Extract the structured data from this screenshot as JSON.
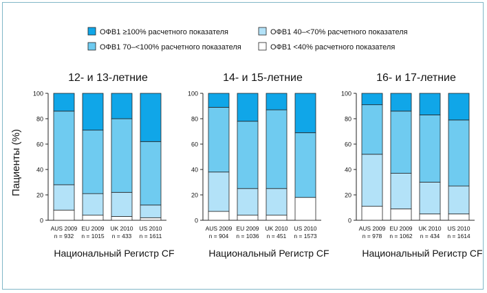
{
  "colors": {
    "ge100": "#10a6e8",
    "c70_100": "#6fcbf0",
    "c40_70": "#b3e2f8",
    "lt40": "#ffffff",
    "frame": "#7fb6c6"
  },
  "legend": [
    {
      "key": "ge100",
      "label": "ОФВ1 ≥100% расчетного показателя"
    },
    {
      "key": "c70_100",
      "label": "ОФВ1 70–<100% расчетного показателя"
    },
    {
      "key": "c40_70",
      "label": "ОФВ1 40–<70% расчетного показателя"
    },
    {
      "key": "lt40",
      "label": "ОФВ1 <40% расчетного показателя"
    }
  ],
  "chart_data": [
    {
      "type": "bar",
      "stacked": true,
      "title": "12- и 13-летние",
      "xlabel": "Национальный Регистр CF",
      "ylabel": "Пациенты (%)",
      "ylim": [
        0,
        100
      ],
      "yticks": [
        0,
        20,
        40,
        60,
        80,
        100
      ],
      "categories": [
        {
          "name": "AUS 2009",
          "n": "n = 932"
        },
        {
          "name": "EU 2009",
          "n": "n = 1015"
        },
        {
          "name": "UK 2010",
          "n": "n = 433"
        },
        {
          "name": "US 2010",
          "n": "n = 1611"
        }
      ],
      "series": [
        {
          "name": "ОФВ1 <40% расчетного показателя",
          "key": "lt40",
          "values": [
            8,
            4,
            3,
            2
          ]
        },
        {
          "name": "ОФВ1 40–<70% расчетного показателя",
          "key": "c40_70",
          "values": [
            20,
            17,
            19,
            10
          ]
        },
        {
          "name": "ОФВ1 70–<100% расчетного показателя",
          "key": "c70_100",
          "values": [
            58,
            50,
            58,
            50
          ]
        },
        {
          "name": "ОФВ1 ≥100% расчетного показателя",
          "key": "ge100",
          "values": [
            14,
            29,
            20,
            38
          ]
        }
      ]
    },
    {
      "type": "bar",
      "stacked": true,
      "title": "14- и 15-летние",
      "xlabel": "Национальный Регистр CF",
      "ylim": [
        0,
        100
      ],
      "yticks": [
        0,
        20,
        40,
        60,
        80,
        100
      ],
      "categories": [
        {
          "name": "AUS 2009",
          "n": "n = 904"
        },
        {
          "name": "EU 2009",
          "n": "n = 1036"
        },
        {
          "name": "UK 2010",
          "n": "n = 451"
        },
        {
          "name": "US 2010",
          "n": "n = 1573"
        }
      ],
      "series": [
        {
          "name": "ОФВ1 <40% расчетного показателя",
          "key": "lt40",
          "values": [
            7,
            4,
            4,
            18
          ]
        },
        {
          "name": "ОФВ1 40–<70% расчетного показателя",
          "key": "c40_70",
          "values": [
            31,
            21,
            21,
            0
          ]
        },
        {
          "name": "ОФВ1 70–<100% расчетного показателя",
          "key": "c70_100",
          "values": [
            51,
            53,
            62,
            51
          ]
        },
        {
          "name": "ОФВ1 ≥100% расчетного показателя",
          "key": "ge100",
          "values": [
            11,
            22,
            13,
            31
          ]
        }
      ]
    },
    {
      "type": "bar",
      "stacked": true,
      "title": "16- и 17-летние",
      "xlabel": "Национальный Регистр CF",
      "ylim": [
        0,
        100
      ],
      "yticks": [
        0,
        20,
        40,
        60,
        80,
        100
      ],
      "categories": [
        {
          "name": "AUS 2009",
          "n": "n = 978"
        },
        {
          "name": "EU 2009",
          "n": "n = 1062"
        },
        {
          "name": "UK 2010",
          "n": "n = 434"
        },
        {
          "name": "US 2010",
          "n": "n = 1614"
        }
      ],
      "series": [
        {
          "name": "ОФВ1 <40% расчетного показателя",
          "key": "lt40",
          "values": [
            11,
            9,
            5,
            5
          ]
        },
        {
          "name": "ОФВ1 40–<70% расчетного показателя",
          "key": "c40_70",
          "values": [
            41,
            28,
            25,
            22
          ]
        },
        {
          "name": "ОФВ1 70–<100% расчетного показателя",
          "key": "c70_100",
          "values": [
            39,
            49,
            53,
            52
          ]
        },
        {
          "name": "ОФВ1 ≥100% расчетного показателя",
          "key": "ge100",
          "values": [
            9,
            14,
            17,
            21
          ]
        }
      ]
    }
  ]
}
